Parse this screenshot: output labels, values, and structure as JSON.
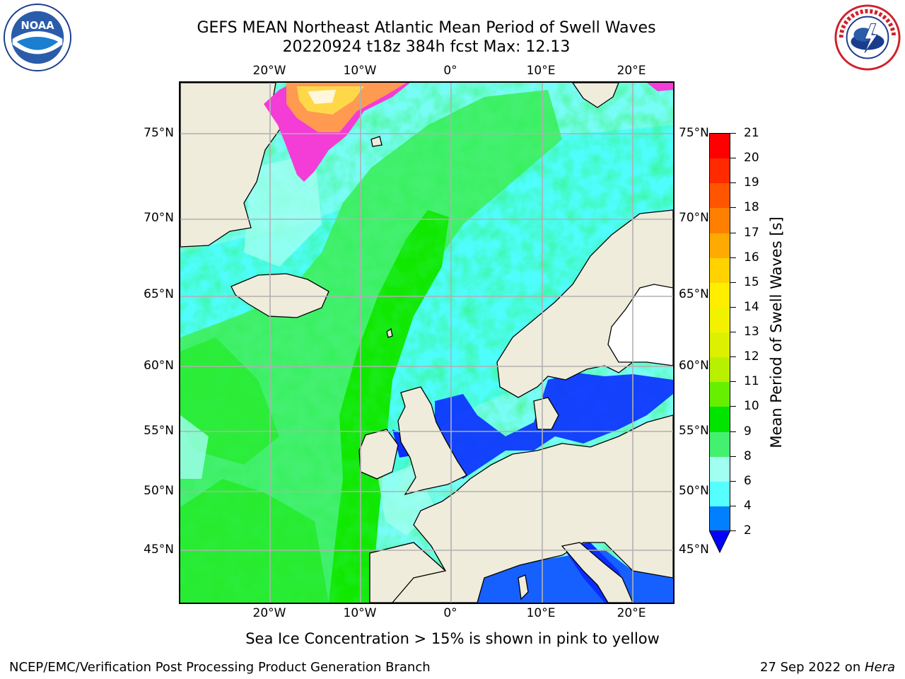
{
  "title": {
    "line1": "GEFS MEAN Northeast Atlantic Mean Period of Swell Waves",
    "line2": "20220924 t18z 384h fcst   Max: 12.13"
  },
  "logos": {
    "left": "noaa-logo",
    "left_text": "NOAA",
    "right": "nws-logo"
  },
  "map": {
    "lon_labels": [
      "20°W",
      "10°W",
      "0°",
      "10°E",
      "20°E"
    ],
    "lat_labels": [
      "75°N",
      "70°N",
      "65°N",
      "60°N",
      "55°N",
      "50°N",
      "45°N"
    ],
    "colors": {
      "land": "#efecdc",
      "grid": "#b0b0b0",
      "ice_pink": "#f43cd6",
      "ice_yellow": "#ffd84a"
    }
  },
  "colorbar": {
    "label": "Mean Period of Swell Waves [s]",
    "ticks": [
      "21",
      "20",
      "19",
      "18",
      "17",
      "16",
      "15",
      "14",
      "13",
      "12",
      "11",
      "10",
      "9",
      "8",
      "6",
      "4",
      "2"
    ],
    "colors": [
      "#ff0000",
      "#ff2a00",
      "#ff5500",
      "#ff8000",
      "#ffaa00",
      "#ffd200",
      "#ffee00",
      "#f2f200",
      "#ddf000",
      "#b8f000",
      "#66f000",
      "#00e400",
      "#44f070",
      "#a0fff0",
      "#55ffff",
      "#00e8ff",
      "#0080ff"
    ],
    "under_color": "#0000ff"
  },
  "footnote": "Sea Ice Concentration > 15% is shown in pink to yellow",
  "footer": {
    "left": "NCEP/EMC/Verification Post Processing Product Generation Branch",
    "right_date": "27 Sep 2022 on ",
    "right_host": "Hera"
  }
}
